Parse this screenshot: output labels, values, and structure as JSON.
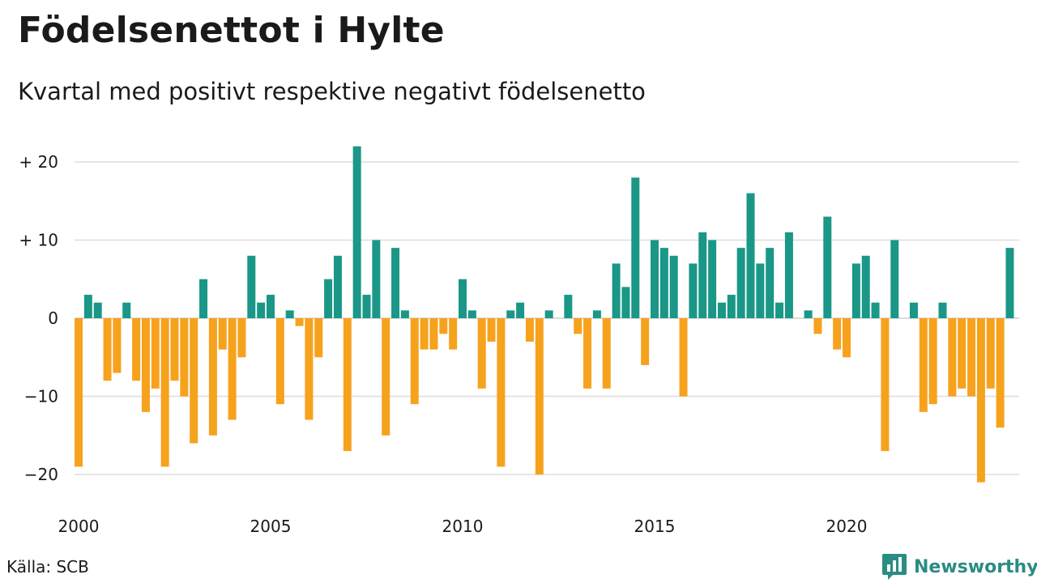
{
  "title": "Födelsenettot i Hylte",
  "subtitle": "Kvartal med positivt respektive negativt födelsenetto",
  "source": "Källa: SCB",
  "brand": "Newsworthy",
  "colors": {
    "positive": "#1a9787",
    "negative": "#f6a21d",
    "grid": "#dddddd",
    "brand": "#2a8c82"
  },
  "chart_data": {
    "type": "bar",
    "start": {
      "year": 2000,
      "quarter": 1
    },
    "ylim": [
      -22,
      23
    ],
    "y_ticks": [
      {
        "value": 20,
        "label": "+ 20"
      },
      {
        "value": 10,
        "label": "+ 10"
      },
      {
        "value": 0,
        "label": "0"
      },
      {
        "value": -10,
        "label": "−10"
      },
      {
        "value": -20,
        "label": "−20"
      }
    ],
    "x_ticks": [
      "2000",
      "2005",
      "2010",
      "2015",
      "2020"
    ],
    "values": [
      -19,
      3,
      2,
      -8,
      -7,
      2,
      -8,
      -12,
      -9,
      -19,
      -8,
      -10,
      -16,
      5,
      -15,
      -4,
      -13,
      -5,
      8,
      2,
      3,
      -11,
      1,
      -1,
      -13,
      -5,
      5,
      8,
      -17,
      22,
      3,
      10,
      -15,
      9,
      1,
      -11,
      -4,
      -4,
      -2,
      -4,
      5,
      1,
      -9,
      -3,
      -19,
      1,
      2,
      -3,
      -20,
      1,
      0,
      3,
      -2,
      -9,
      1,
      -9,
      7,
      4,
      18,
      -6,
      10,
      9,
      8,
      -10,
      7,
      11,
      10,
      2,
      3,
      9,
      16,
      7,
      9,
      2,
      11,
      0,
      1,
      -2,
      13,
      -4,
      -5,
      7,
      8,
      2,
      -17,
      10,
      0,
      2,
      -12,
      -11,
      2,
      -10,
      -9,
      -10,
      -21,
      -9,
      -14,
      9
    ]
  }
}
